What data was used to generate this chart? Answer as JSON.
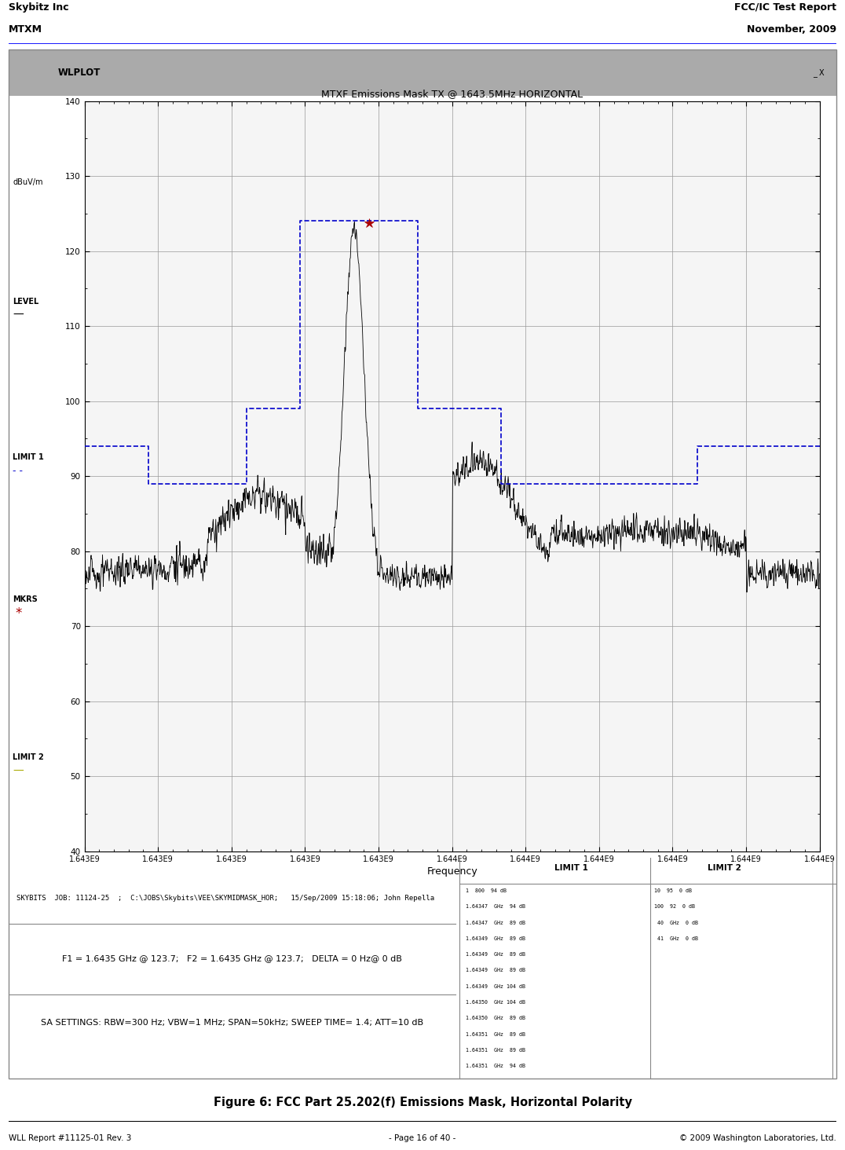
{
  "title_text": "Skybitz Inc",
  "title_right": "FCC/IC Test Report",
  "subtitle_left": "MTXM",
  "subtitle_right": "November, 2009",
  "footer_left": "WLL Report #11125-01 Rev. 3",
  "footer_center": "- Page 16 of 40 -",
  "footer_right": "© 2009 Washington Laboratories, Ltd.",
  "figure_caption": "Figure 6: FCC Part 25.202(f) Emissions Mask, Horizontal Polarity",
  "plot_title": "MTXF Emissions Mask TX @ 1643.5MHz HORIZONTAL",
  "xlabel": "Frequency",
  "ylabel_left": "dBuV/m",
  "ylim": [
    40,
    140
  ],
  "xlim_lo": 1643000000.0,
  "xlim_hi": 1644500000.0,
  "yticks": [
    40,
    50,
    60,
    70,
    80,
    90,
    100,
    110,
    120,
    130,
    140
  ],
  "xtick_labels": [
    "1.643E9",
    "1.643E9",
    "1.643E9",
    "1.643E9",
    "1.643E9",
    "1.644E9",
    "1.644E9",
    "1.644E9",
    "1.644E9",
    "1.644E9",
    "1.644E9"
  ],
  "bg_color": "#d4d0c8",
  "plot_bg": "#f5f5f5",
  "window_title": "WLPLOT",
  "level_label": "LEVEL",
  "limit1_label": "LIMIT 1",
  "limit2_label": "LIMIT 2",
  "mkrs_label": "MKRS",
  "info_line1": "SKYBITS  JOB: 11124-25  ;  C:\\JOBS\\Skybits\\VEE\\SKYMIDMASK_HOR;   15/Sep/2009 15:18:06; John Repella",
  "info_line2": "F1 = 1.6435 GHz @ 123.7;   F2 = 1.6435 GHz @ 123.7;   DELTA = 0 Hz@ 0 dB",
  "info_line3": "SA SETTINGS: RBW=300 Hz; VBW=1 MHz; SPAN=50kHz; SWEEP TIME= 1.4; ATT=10 dB",
  "limit1_color": "#0000cc",
  "limit2_color": "#aaaa00",
  "signal_color": "#000000",
  "marker_color": "#aa0000",
  "titlebar_color": "#aaaaaa",
  "border_color": "#888888"
}
